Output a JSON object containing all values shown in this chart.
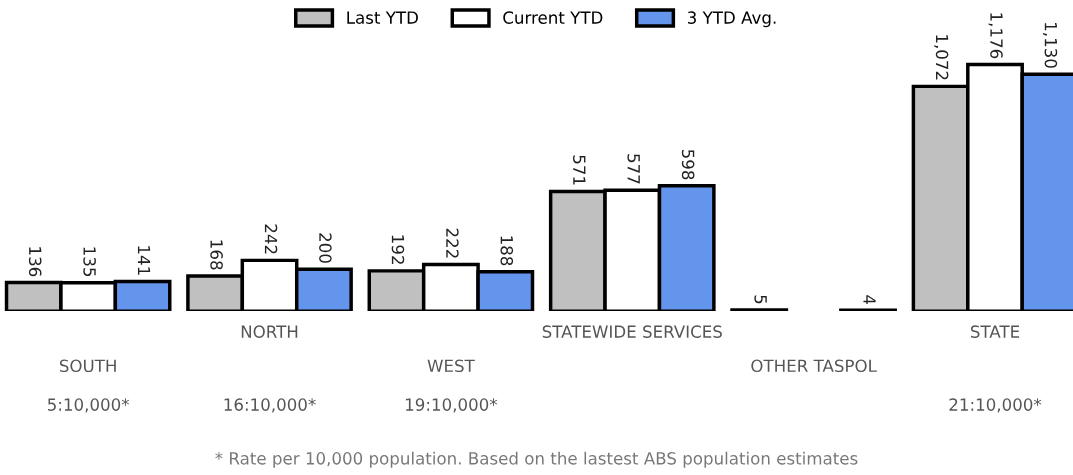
{
  "chart_data": {
    "type": "bar",
    "categories": [
      "SOUTH",
      "NORTH",
      "WEST",
      "STATEWIDE SERVICES",
      "OTHER TASPOL",
      "STATE"
    ],
    "series": [
      {
        "name": "Last YTD",
        "color": "#c0c0c0",
        "values": [
          136,
          168,
          192,
          571,
          5,
          1072
        ],
        "value_labels": [
          "136",
          "168",
          "192",
          "571",
          "5",
          "1,072"
        ]
      },
      {
        "name": "Current YTD",
        "color": "#ffffff",
        "values": [
          135,
          242,
          222,
          577,
          null,
          1176
        ],
        "value_labels": [
          "135",
          "242",
          "222",
          "577",
          null,
          "1,176"
        ]
      },
      {
        "name": "3 YTD Avg.",
        "color": "#6495ed",
        "values": [
          141,
          200,
          188,
          598,
          4,
          1130
        ],
        "value_labels": [
          "141",
          "200",
          "188",
          "598",
          "4",
          "1,130"
        ]
      }
    ],
    "legend": "top",
    "annotations": [
      "5:10,000*",
      "16:10,000*",
      "19:10,000*",
      "21:10,000*",
      "* Rate per 10,000 population. Based on the lastest ABS population estimates"
    ]
  }
}
